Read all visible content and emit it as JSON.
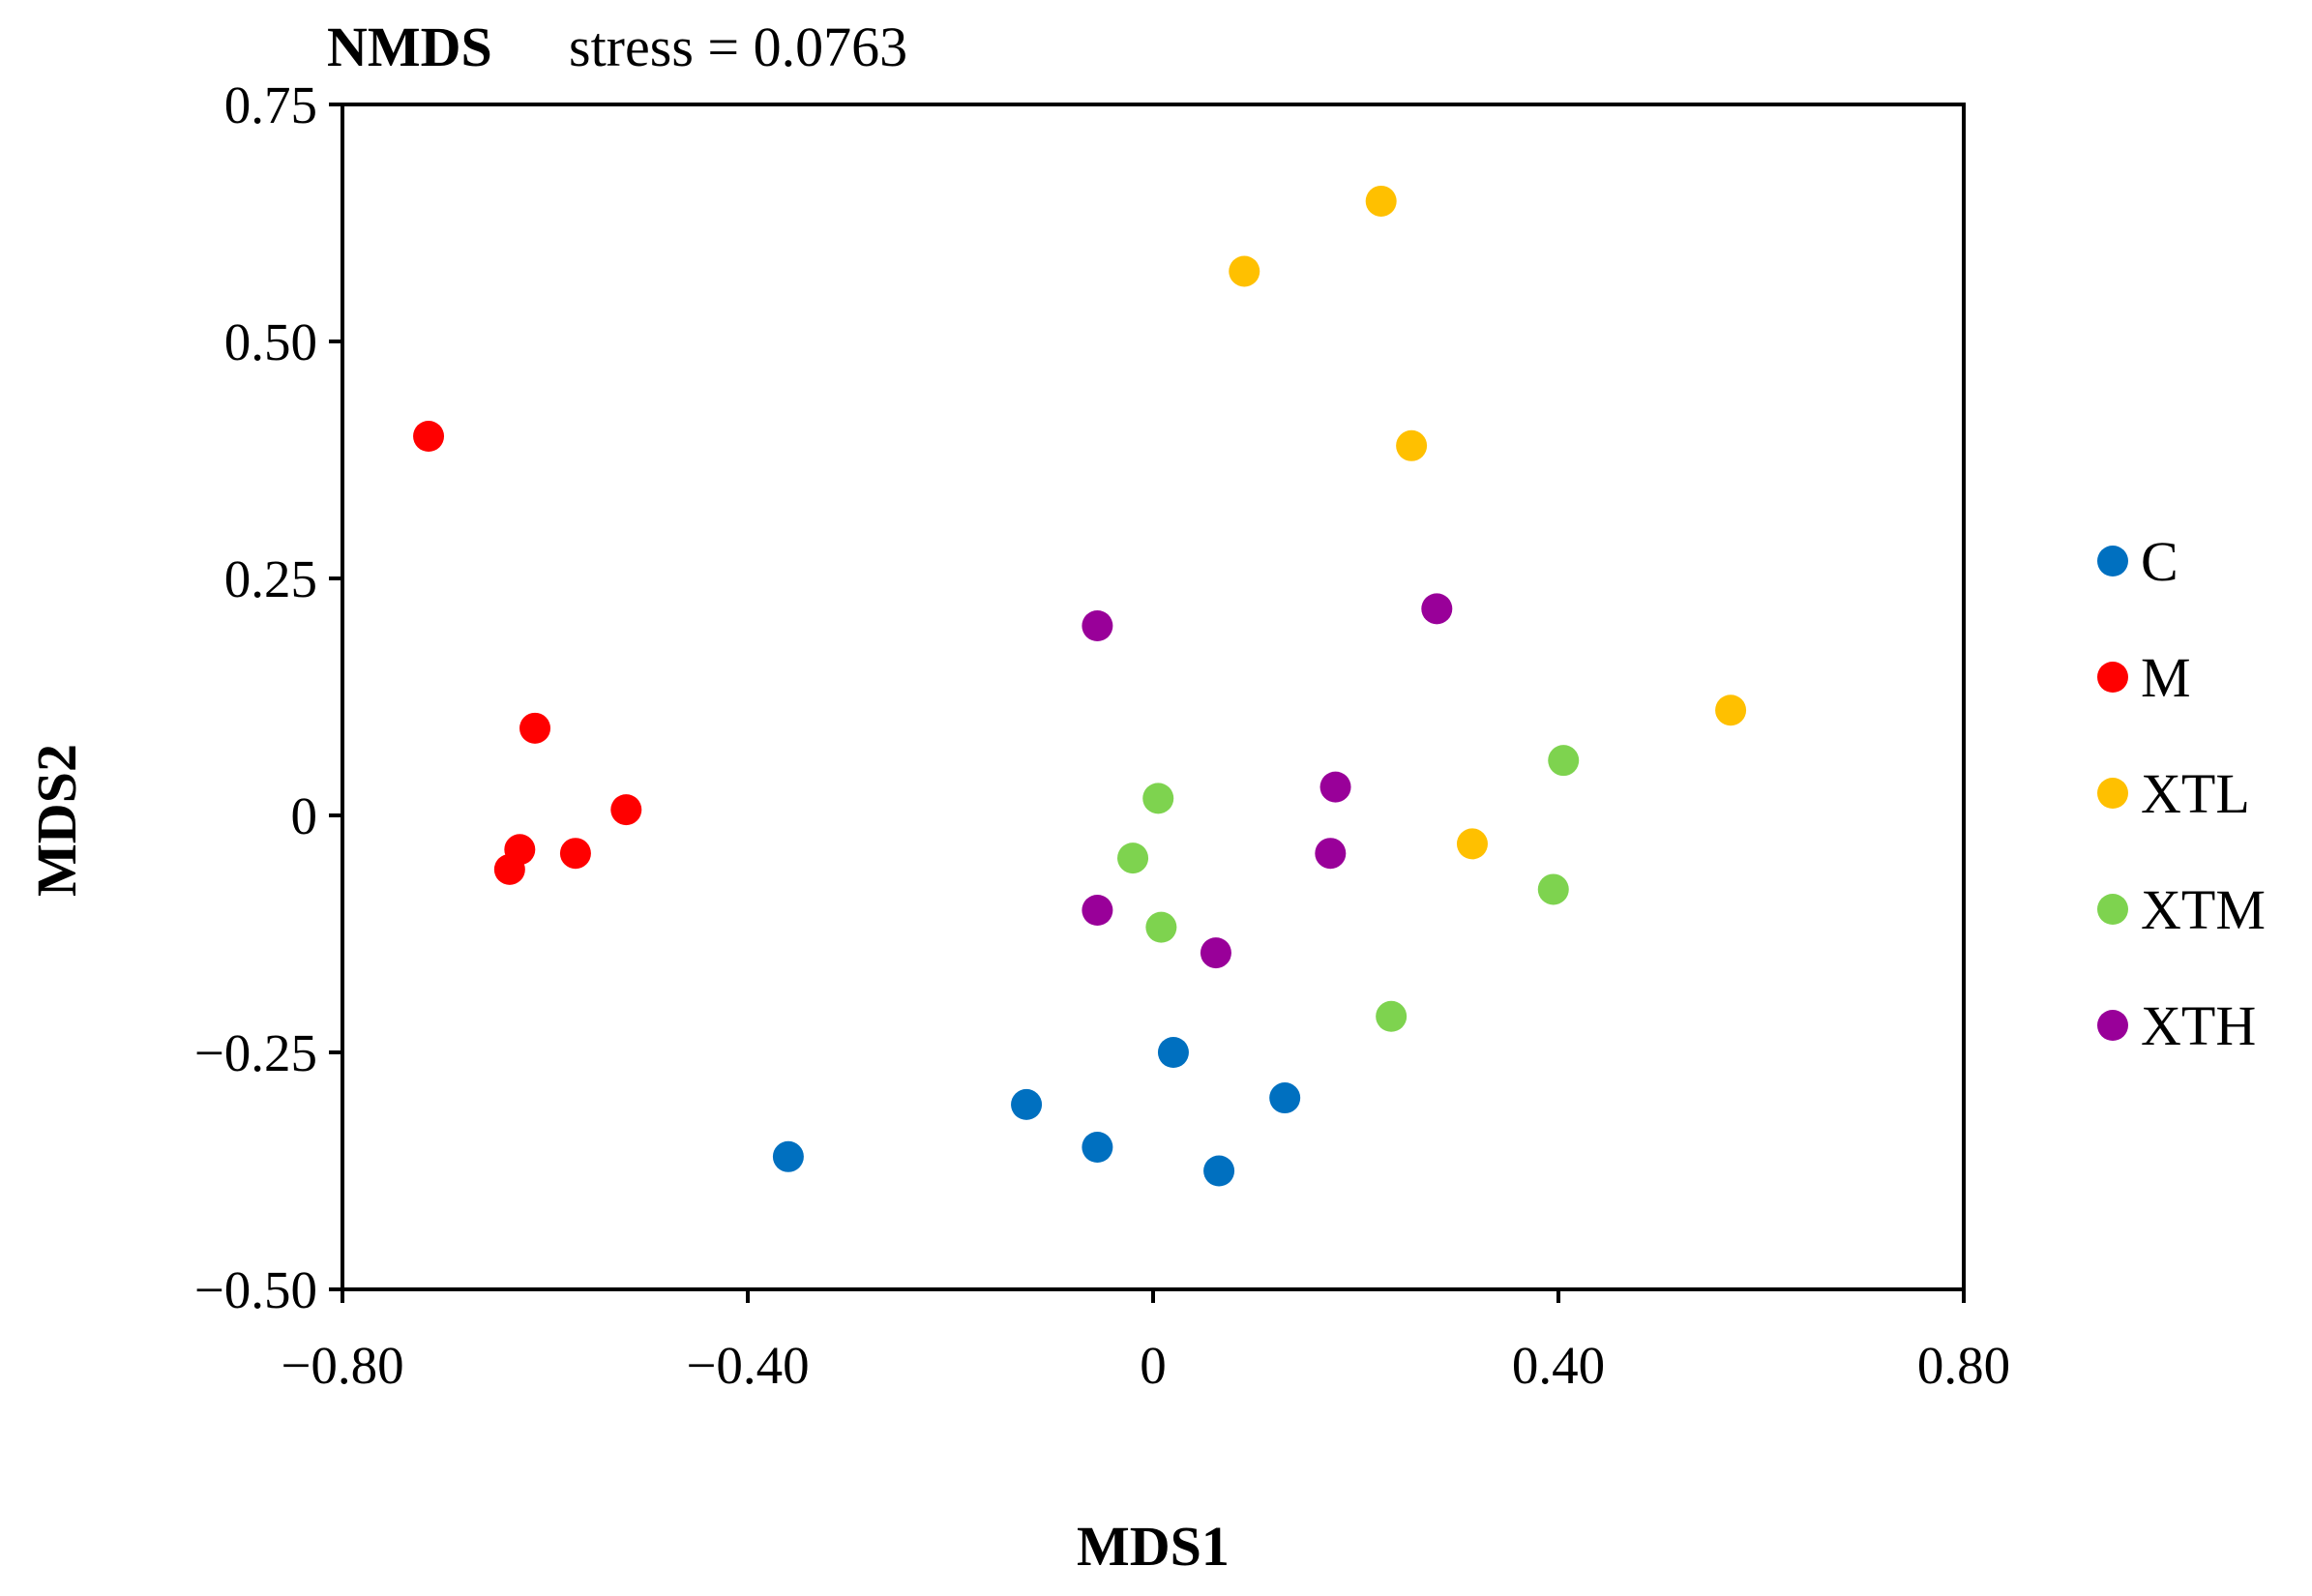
{
  "chart_data": {
    "type": "scatter",
    "title": "NMDS",
    "subtitle": "stress = 0.0763",
    "xlabel": "MDS1",
    "ylabel": "MDS2",
    "xlim": [
      -0.8,
      0.8
    ],
    "ylim": [
      -0.5,
      0.75
    ],
    "xticks": [
      -0.8,
      -0.4,
      0,
      0.4,
      0.8
    ],
    "xtick_labels": [
      "−0.80",
      "−0.40",
      "0",
      "0.40",
      "0.80"
    ],
    "yticks": [
      -0.5,
      -0.25,
      0,
      0.25,
      0.5,
      0.75
    ],
    "ytick_labels": [
      "−0.50",
      "−0.25",
      "0",
      "0.25",
      "0.50",
      "0.75"
    ],
    "grid": false,
    "legend_position": "right",
    "series": [
      {
        "name": "C",
        "color": "#0070C0",
        "points": [
          [
            -0.36,
            -0.36
          ],
          [
            -0.125,
            -0.305
          ],
          [
            -0.055,
            -0.35
          ],
          [
            0.02,
            -0.25
          ],
          [
            0.065,
            -0.375
          ],
          [
            0.13,
            -0.298
          ]
        ]
      },
      {
        "name": "M",
        "color": "#FF0000",
        "points": [
          [
            -0.715,
            0.4
          ],
          [
            -0.61,
            0.092
          ],
          [
            -0.52,
            0.006
          ],
          [
            -0.625,
            -0.036
          ],
          [
            -0.57,
            -0.04
          ],
          [
            -0.635,
            -0.057
          ]
        ]
      },
      {
        "name": "XTL",
        "color": "#FFC000",
        "points": [
          [
            0.225,
            0.648
          ],
          [
            0.09,
            0.574
          ],
          [
            0.255,
            0.39
          ],
          [
            0.57,
            0.111
          ],
          [
            0.315,
            -0.03
          ]
        ]
      },
      {
        "name": "XTM",
        "color": "#7ED34F",
        "points": [
          [
            0.405,
            0.058
          ],
          [
            0.005,
            0.018
          ],
          [
            -0.02,
            -0.045
          ],
          [
            0.008,
            -0.118
          ],
          [
            0.395,
            -0.078
          ],
          [
            0.235,
            -0.212
          ]
        ]
      },
      {
        "name": "XTH",
        "color": "#990099",
        "points": [
          [
            -0.055,
            0.2
          ],
          [
            0.28,
            0.218
          ],
          [
            0.18,
            0.03
          ],
          [
            0.175,
            -0.04
          ],
          [
            -0.055,
            -0.1
          ],
          [
            0.062,
            -0.145
          ]
        ]
      }
    ]
  }
}
